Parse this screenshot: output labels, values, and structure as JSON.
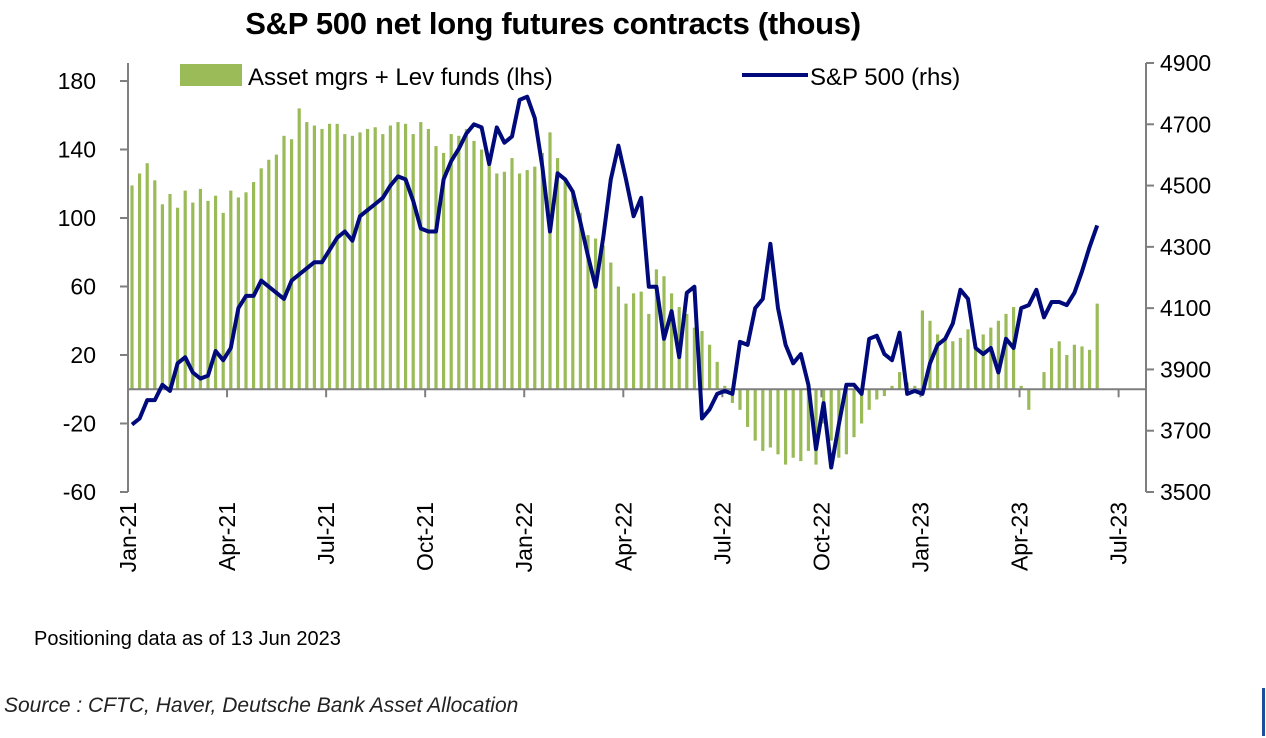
{
  "chart_data": {
    "type": "bar+line",
    "title": "S&P 500 net long futures contracts  (thous)",
    "note": "Positioning data as of 13 Jun 2023",
    "source": "Source : CFTC, Haver, Deutsche Bank Asset Allocation",
    "x_tick_labels": [
      "Jan-21",
      "Apr-21",
      "Jul-21",
      "Oct-21",
      "Jan-22",
      "Apr-22",
      "Jul-22",
      "Oct-22",
      "Jan-23",
      "Apr-23",
      "Jul-23"
    ],
    "x_tick_weeks": [
      0,
      13,
      26,
      39,
      52,
      65,
      78,
      91,
      104,
      117,
      130
    ],
    "left_axis": {
      "ylim": [
        -60,
        180
      ],
      "ticks": [
        180,
        140,
        100,
        60,
        20,
        -20,
        -60
      ],
      "label": "lhs"
    },
    "right_axis": {
      "ylim": [
        3500,
        4900
      ],
      "ticks": [
        4900,
        4700,
        4500,
        4300,
        4100,
        3900,
        3700,
        3500
      ],
      "label": "rhs"
    },
    "series": [
      {
        "name": "Asset mgrs + Lev funds (lhs)",
        "type": "bar",
        "color": "#9bbb59",
        "values": [
          119,
          126,
          132,
          122,
          108,
          114,
          106,
          116,
          109,
          117,
          110,
          113,
          103,
          116,
          112,
          115,
          121,
          129,
          134,
          137,
          148,
          146,
          164,
          156,
          154,
          152,
          155,
          155,
          149,
          148,
          150,
          152,
          153,
          149,
          154,
          156,
          155,
          149,
          156,
          152,
          142,
          138,
          149,
          148,
          152,
          145,
          140,
          133,
          126,
          127,
          135,
          126,
          128,
          130,
          138,
          150,
          135,
          122,
          115,
          103,
          90,
          88,
          84,
          74,
          60,
          50,
          56,
          57,
          44,
          70,
          66,
          56,
          48,
          44,
          36,
          34,
          26,
          16,
          2,
          -8,
          -12,
          -22,
          -30,
          -36,
          -34,
          -38,
          -44,
          -40,
          -42,
          -36,
          -44,
          -20,
          -30,
          -40,
          -38,
          -28,
          -20,
          -12,
          -6,
          -4,
          2,
          10,
          4,
          2,
          46,
          40,
          32,
          30,
          28,
          30,
          35,
          26,
          32,
          36,
          40,
          44,
          48,
          2,
          -12,
          0,
          10,
          24,
          28,
          20,
          26,
          25,
          23,
          50
        ]
      },
      {
        "name": "S&P 500 (rhs)",
        "type": "line",
        "color": "#000a7a",
        "values": [
          3720,
          3740,
          3800,
          3800,
          3850,
          3830,
          3920,
          3940,
          3890,
          3870,
          3880,
          3960,
          3930,
          3970,
          4100,
          4140,
          4140,
          4190,
          4170,
          4150,
          4130,
          4190,
          4210,
          4230,
          4250,
          4250,
          4290,
          4330,
          4350,
          4320,
          4400,
          4420,
          4440,
          4460,
          4500,
          4530,
          4520,
          4450,
          4360,
          4350,
          4350,
          4520,
          4580,
          4620,
          4670,
          4700,
          4690,
          4570,
          4690,
          4640,
          4660,
          4780,
          4790,
          4720,
          4560,
          4350,
          4540,
          4520,
          4480,
          4380,
          4270,
          4170,
          4330,
          4520,
          4630,
          4520,
          4400,
          4460,
          4170,
          4170,
          4000,
          4090,
          3940,
          4150,
          4170,
          3740,
          3770,
          3820,
          3830,
          3820,
          3990,
          3980,
          4100,
          4130,
          4310,
          4100,
          3980,
          3920,
          3950,
          3850,
          3640,
          3790,
          3580,
          3720,
          3850,
          3850,
          3820,
          4000,
          4010,
          3950,
          3930,
          4020,
          3820,
          3830,
          3820,
          3920,
          3980,
          4000,
          4050,
          4160,
          4130,
          3970,
          3950,
          3970,
          3890,
          4000,
          3970,
          4100,
          4110,
          4160,
          4070,
          4120,
          4120,
          4110,
          4150,
          4220,
          4300,
          4370
        ]
      }
    ],
    "legend_placement": "top"
  }
}
